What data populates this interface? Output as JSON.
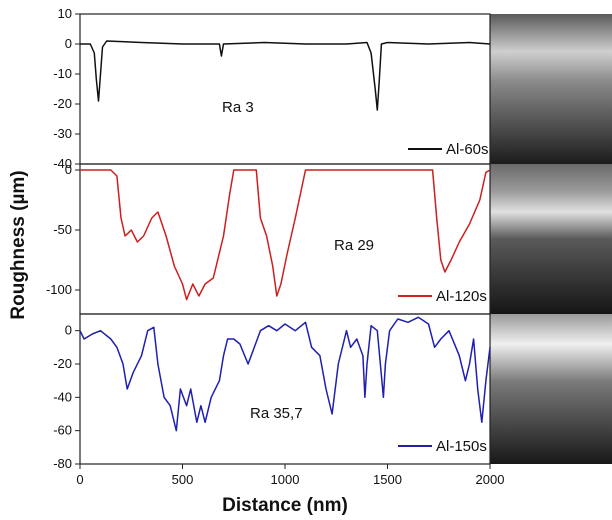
{
  "chart_data": {
    "type": "line",
    "xlabel": "Distance (nm)",
    "ylabel": "Roughness (µm)",
    "x_ticks": [
      "0",
      "500",
      "1000",
      "1500",
      "2000"
    ],
    "xlim": [
      0,
      2000
    ],
    "colors": {
      "line1": "#111111",
      "line2": "#cc1f1f",
      "line3": "#1f1fb0"
    },
    "panels": [
      {
        "series_name": "Al-60s",
        "annotation": "Ra 3",
        "ylim": [
          -40,
          10
        ],
        "y_ticks": [
          "10",
          "0",
          "-10",
          "-20",
          "-30",
          "-40"
        ],
        "y_tick_values": [
          10,
          0,
          -10,
          -20,
          -30,
          -40
        ],
        "points": [
          [
            0,
            0
          ],
          [
            50,
            0
          ],
          [
            70,
            -3
          ],
          [
            80,
            -12
          ],
          [
            90,
            -19
          ],
          [
            100,
            -10
          ],
          [
            110,
            -1
          ],
          [
            130,
            1
          ],
          [
            300,
            0.5
          ],
          [
            500,
            0
          ],
          [
            680,
            0
          ],
          [
            690,
            -4
          ],
          [
            700,
            0
          ],
          [
            900,
            0.5
          ],
          [
            1100,
            0
          ],
          [
            1300,
            0
          ],
          [
            1400,
            0.5
          ],
          [
            1420,
            -3
          ],
          [
            1440,
            -15
          ],
          [
            1450,
            -22
          ],
          [
            1460,
            -12
          ],
          [
            1470,
            0
          ],
          [
            1500,
            0.5
          ],
          [
            1700,
            0
          ],
          [
            1900,
            0.5
          ],
          [
            2000,
            0
          ]
        ]
      },
      {
        "series_name": "Al-120s",
        "annotation": "Ra 29",
        "ylim": [
          -120,
          5
        ],
        "y_ticks": [
          "0",
          "-50",
          "-100"
        ],
        "y_tick_values": [
          0,
          -50,
          -100
        ],
        "points": [
          [
            0,
            0
          ],
          [
            150,
            0
          ],
          [
            180,
            -5
          ],
          [
            200,
            -40
          ],
          [
            220,
            -55
          ],
          [
            250,
            -50
          ],
          [
            280,
            -60
          ],
          [
            310,
            -55
          ],
          [
            350,
            -40
          ],
          [
            380,
            -35
          ],
          [
            420,
            -55
          ],
          [
            460,
            -80
          ],
          [
            500,
            -95
          ],
          [
            520,
            -108
          ],
          [
            550,
            -95
          ],
          [
            580,
            -105
          ],
          [
            610,
            -95
          ],
          [
            650,
            -90
          ],
          [
            700,
            -55
          ],
          [
            730,
            -20
          ],
          [
            750,
            0
          ],
          [
            860,
            0
          ],
          [
            880,
            -40
          ],
          [
            910,
            -55
          ],
          [
            940,
            -80
          ],
          [
            960,
            -105
          ],
          [
            980,
            -95
          ],
          [
            1010,
            -70
          ],
          [
            1050,
            -40
          ],
          [
            1100,
            0
          ],
          [
            1350,
            0
          ],
          [
            1500,
            0
          ],
          [
            1720,
            0
          ],
          [
            1740,
            -40
          ],
          [
            1760,
            -75
          ],
          [
            1780,
            -85
          ],
          [
            1810,
            -75
          ],
          [
            1850,
            -60
          ],
          [
            1900,
            -45
          ],
          [
            1950,
            -25
          ],
          [
            1980,
            -2
          ],
          [
            2000,
            0
          ]
        ]
      },
      {
        "series_name": "Al-150s",
        "annotation": "Ra 35,7",
        "ylim": [
          -80,
          10
        ],
        "y_ticks": [
          "0",
          "-20",
          "-40",
          "-60",
          "-80"
        ],
        "y_tick_values": [
          0,
          -20,
          -40,
          -60,
          -80
        ],
        "points": [
          [
            0,
            0
          ],
          [
            20,
            -5
          ],
          [
            60,
            -2
          ],
          [
            100,
            0
          ],
          [
            150,
            -5
          ],
          [
            180,
            -10
          ],
          [
            210,
            -20
          ],
          [
            230,
            -35
          ],
          [
            260,
            -25
          ],
          [
            300,
            -15
          ],
          [
            330,
            0
          ],
          [
            360,
            2
          ],
          [
            380,
            -20
          ],
          [
            410,
            -40
          ],
          [
            440,
            -45
          ],
          [
            470,
            -60
          ],
          [
            490,
            -35
          ],
          [
            520,
            -45
          ],
          [
            540,
            -35
          ],
          [
            570,
            -55
          ],
          [
            590,
            -45
          ],
          [
            610,
            -55
          ],
          [
            640,
            -40
          ],
          [
            680,
            -30
          ],
          [
            700,
            -15
          ],
          [
            720,
            -5
          ],
          [
            750,
            -5
          ],
          [
            780,
            -8
          ],
          [
            820,
            -20
          ],
          [
            850,
            -10
          ],
          [
            880,
            0
          ],
          [
            920,
            3
          ],
          [
            960,
            0
          ],
          [
            1000,
            4
          ],
          [
            1050,
            0
          ],
          [
            1100,
            5
          ],
          [
            1130,
            -10
          ],
          [
            1170,
            -15
          ],
          [
            1200,
            -35
          ],
          [
            1230,
            -50
          ],
          [
            1260,
            -20
          ],
          [
            1300,
            0
          ],
          [
            1320,
            -10
          ],
          [
            1350,
            -5
          ],
          [
            1380,
            -15
          ],
          [
            1390,
            -40
          ],
          [
            1400,
            -20
          ],
          [
            1420,
            3
          ],
          [
            1450,
            0
          ],
          [
            1480,
            -40
          ],
          [
            1490,
            -20
          ],
          [
            1510,
            0
          ],
          [
            1550,
            7
          ],
          [
            1600,
            5
          ],
          [
            1650,
            8
          ],
          [
            1700,
            4
          ],
          [
            1730,
            -10
          ],
          [
            1760,
            -5
          ],
          [
            1800,
            0
          ],
          [
            1850,
            -15
          ],
          [
            1880,
            -30
          ],
          [
            1900,
            -20
          ],
          [
            1920,
            -5
          ],
          [
            1940,
            -35
          ],
          [
            1960,
            -55
          ],
          [
            1980,
            -30
          ],
          [
            2000,
            -10
          ]
        ]
      }
    ]
  }
}
